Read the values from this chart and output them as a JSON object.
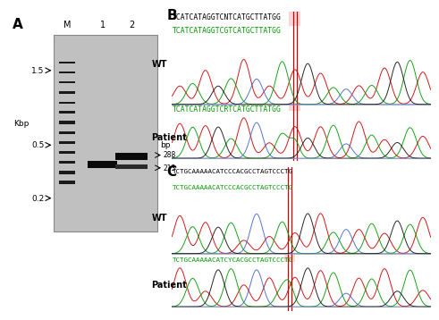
{
  "panel_A_label": "A",
  "panel_B_label": "B",
  "panel_C_label": "C",
  "seq_B_top": "TCATCATAGGTCNTCATGCTTATGG",
  "seq_B_wt": "TCATCATAGGTCGTCATGCTTATGG",
  "seq_B_patient": "TCATCATAGGTCRTCATGCTTATGG",
  "seq_C_top": "TCTGCAAAAACATCCCACGCCTAGTCCCTG",
  "seq_C_wt": "TCTGCAAAAACATCCCACGCCTAGTCCCTG",
  "seq_C_patient": "TCTGCAAAAACATCYCACGCCTAGTCCCTG",
  "seq_color_black": "#000000",
  "seq_color_green": "#009900",
  "red_line_color": "#cc0000",
  "highlight_color": "#ffbbbb",
  "electro_colors": {
    "red": "#cc0000",
    "green": "#009900",
    "blue": "#4466cc",
    "black": "#111111"
  },
  "gel_bg": "#c0c0c0",
  "gel_border": "#888888",
  "kbp_labels": [
    "1.5",
    "0.5",
    "0.2"
  ],
  "bp_labels": [
    "288",
    "213"
  ],
  "lane_labels": [
    "M",
    "1",
    "2"
  ],
  "wt_label": "WT",
  "patient_label": "Patient",
  "kbp_label": "Kbp",
  "bp_label": "bp",
  "seq_fontsize": 5.8,
  "seq_C_fontsize": 5.4,
  "label_fontsize": 7.0,
  "panel_label_fontsize": 11
}
